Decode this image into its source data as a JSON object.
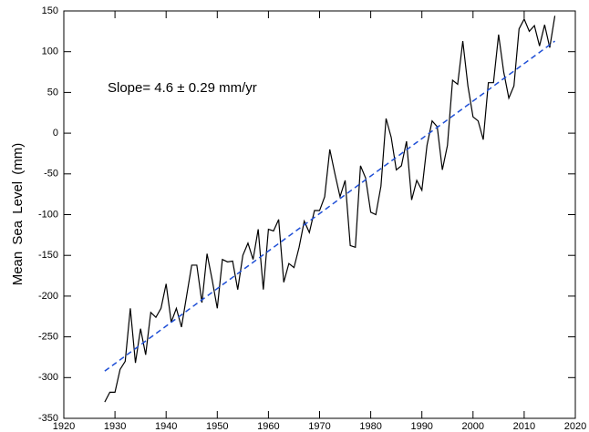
{
  "chart_data": {
    "type": "line",
    "y_label": "Mean Sea Level (mm)",
    "annotation": "Slope= 4.6 ± 0.29 mm/yr",
    "xlim": [
      1920,
      2020
    ],
    "xticks": [
      1920,
      1930,
      1940,
      1950,
      1960,
      1970,
      1980,
      1990,
      2000,
      2010,
      2020
    ],
    "ylim": [
      -350,
      150
    ],
    "yticks": [
      -350,
      -300,
      -250,
      -200,
      -150,
      -100,
      -50,
      0,
      50,
      100,
      150
    ],
    "series": [
      {
        "color": "#000000",
        "dash": false,
        "x": [
          1928,
          1929,
          1930,
          1931,
          1932,
          1933,
          1934,
          1935,
          1936,
          1937,
          1938,
          1939,
          1940,
          1941,
          1942,
          1943,
          1944,
          1945,
          1946,
          1947,
          1948,
          1949,
          1950,
          1951,
          1952,
          1953,
          1954,
          1955,
          1956,
          1957,
          1958,
          1959,
          1960,
          1961,
          1962,
          1963,
          1964,
          1965,
          1966,
          1967,
          1968,
          1969,
          1970,
          1971,
          1972,
          1973,
          1974,
          1975,
          1976,
          1977,
          1978,
          1979,
          1980,
          1981,
          1982,
          1983,
          1984,
          1985,
          1986,
          1987,
          1988,
          1989,
          1990,
          1991,
          1992,
          1993,
          1994,
          1995,
          1996,
          1997,
          1998,
          1999,
          2000,
          2001,
          2002,
          2003,
          2004,
          2005,
          2006,
          2007,
          2008,
          2009,
          2010,
          2011,
          2012,
          2013,
          2014,
          2015,
          2016
        ],
        "values": [
          -330,
          -318,
          -318,
          -290,
          -280,
          -215,
          -282,
          -240,
          -272,
          -220,
          -226,
          -215,
          -185,
          -232,
          -215,
          -238,
          -200,
          -162,
          -162,
          -208,
          -148,
          -180,
          -215,
          -155,
          -158,
          -157,
          -192,
          -150,
          -135,
          -155,
          -118,
          -192,
          -118,
          -120,
          -106,
          -183,
          -160,
          -165,
          -140,
          -108,
          -122,
          -95,
          -95,
          -78,
          -20,
          -50,
          -78,
          -58,
          -138,
          -140,
          -40,
          -55,
          -97,
          -100,
          -65,
          18,
          -5,
          -45,
          -40,
          -10,
          -82,
          -58,
          -70,
          -15,
          15,
          8,
          -45,
          -15,
          65,
          60,
          113,
          58,
          20,
          15,
          -8,
          62,
          62,
          121,
          75,
          43,
          58,
          128,
          140,
          125,
          132,
          107,
          133,
          105,
          144
        ]
      },
      {
        "color": "#1f4fd6",
        "dash": true,
        "x": [
          1928,
          2016
        ],
        "values": [
          -292,
          113
        ]
      }
    ]
  }
}
